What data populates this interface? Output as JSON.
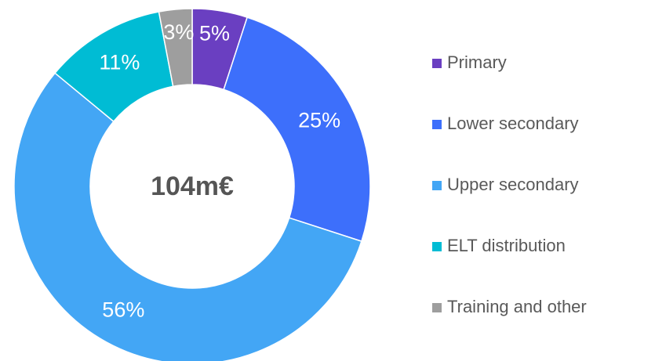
{
  "chart_data": {
    "type": "donut",
    "center_label": "104m€",
    "categories": [
      "Primary",
      "Lower secondary",
      "Upper secondary",
      "ELT distribution",
      "Training and other"
    ],
    "values": [
      5,
      25,
      56,
      11,
      3
    ],
    "value_labels": [
      "5%",
      "25%",
      "56%",
      "11%",
      "3%"
    ],
    "colors": [
      "#6a3fc1",
      "#3d6ffb",
      "#43a6f5",
      "#00bcd4",
      "#9e9e9e"
    ],
    "legend": "right"
  }
}
